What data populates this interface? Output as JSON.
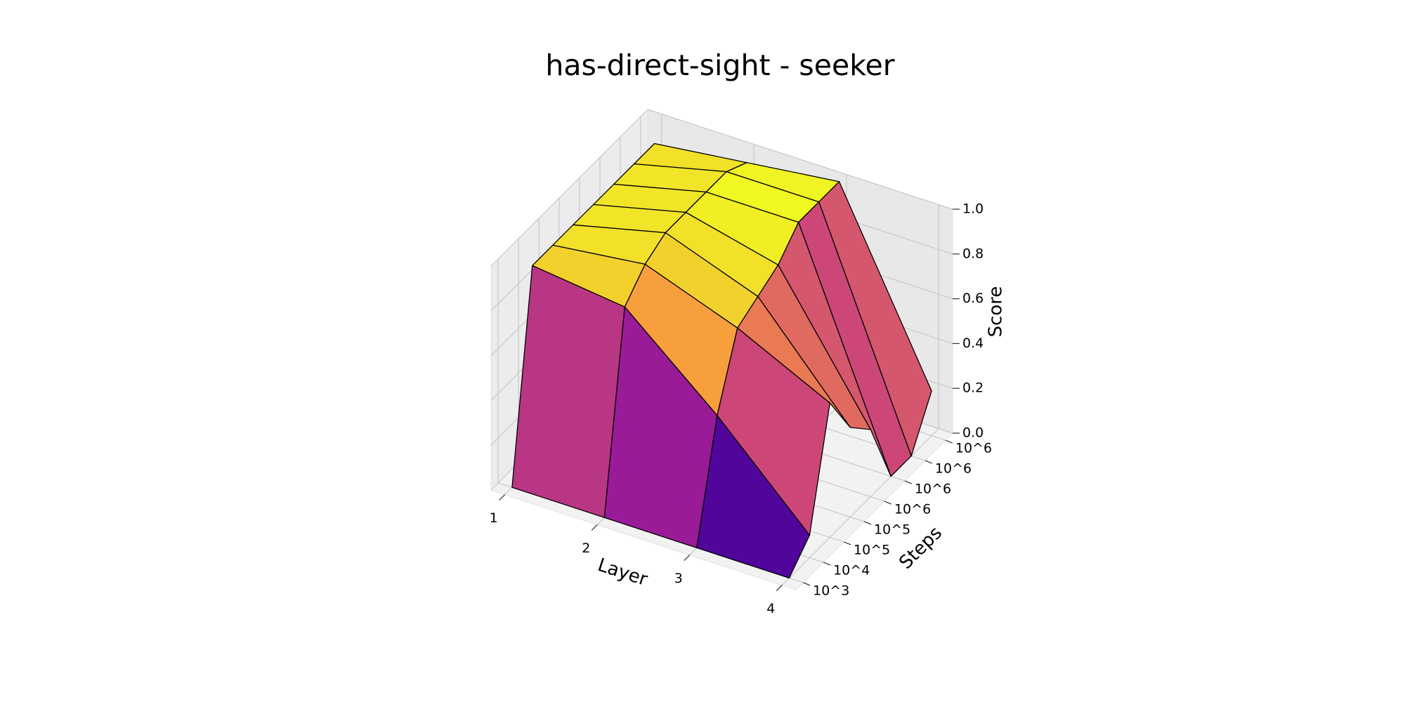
{
  "chart_data": {
    "type": "surface3d",
    "title": "has-direct-sight - seeker",
    "x_label": "Layer",
    "y_label": "Steps",
    "z_label": "Score",
    "x": [
      1,
      2,
      3,
      4
    ],
    "y": [
      "10^3",
      "10^4",
      "10^5",
      "10^5",
      "10^6",
      "10^6",
      "10^6",
      "10^6"
    ],
    "values": [
      [
        0,
        0,
        0,
        0
      ],
      [
        0.9,
        0.85,
        0.5,
        0.1
      ],
      [
        0.9,
        0.95,
        0.8,
        0.6
      ],
      [
        0.9,
        1.0,
        0.85,
        0.4
      ],
      [
        0.9,
        1.0,
        0.9,
        0.3
      ],
      [
        0.9,
        1.0,
        1.0,
        0.0
      ],
      [
        0.9,
        1.0,
        1.0,
        0.0
      ],
      [
        0.9,
        0.95,
        1.0,
        0.2
      ]
    ],
    "xlim": [
      0.85,
      4.15
    ],
    "xticks": [
      1,
      2,
      3,
      4
    ],
    "zlim": [
      0,
      1
    ],
    "zticks": [
      {
        "value": 0,
        "label": "0.0"
      },
      0.2,
      0.4,
      0.6,
      0.8,
      {
        "value": 1,
        "label": "1.0"
      }
    ],
    "colormap": "plasma",
    "edgecolor": "#000000",
    "grid": true
  }
}
